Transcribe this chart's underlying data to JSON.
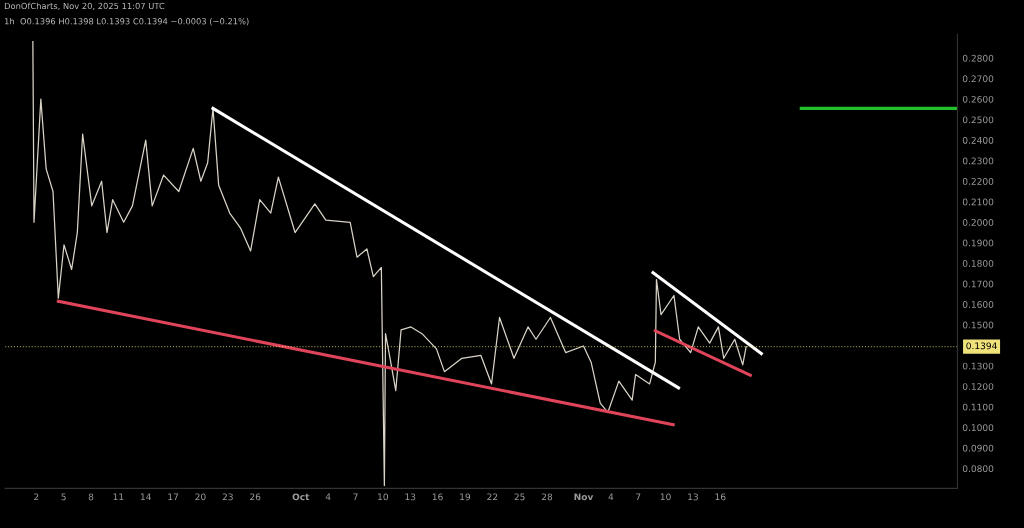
{
  "chart_data": {
    "type": "line",
    "title": "DonOfCharts, Nov 20, 2025 11:07 UTC",
    "subtitle": "1h  O0.1396 H0.1398 L0.1393 C0.1394 −0.0003 (−0.21%)",
    "series": [
      {
        "color": "#d9d3c7",
        "x": [
          "2025-09-01T15:00",
          "2025-09-01T18:00",
          "2025-09-02T12:00",
          "2025-09-03T02:00",
          "2025-09-03T20:00",
          "2025-09-04T10:00",
          "2025-09-05T01:00",
          "2025-09-05T21:00",
          "2025-09-06T12:00",
          "2025-09-07T02:00",
          "2025-09-08T02:00",
          "2025-09-09T04:00",
          "2025-09-09T18:00",
          "2025-09-10T09:00",
          "2025-09-11T14:00",
          "2025-09-12T13:00",
          "2025-09-14T00:00",
          "2025-09-14T17:00",
          "2025-09-15T23:00",
          "2025-09-17T15:00",
          "2025-09-19T05:00",
          "2025-09-20T01:00",
          "2025-09-20T19:00",
          "2025-09-21T09:00",
          "2025-09-22T00:00",
          "2025-09-23T05:00",
          "2025-09-24T10:00",
          "2025-09-25T12:00",
          "2025-09-26T12:00",
          "2025-09-27T17:00",
          "2025-09-28T13:00",
          "2025-09-30T09:00",
          "2025-10-02T13:00",
          "2025-10-03T18:00",
          "2025-10-06T10:00",
          "2025-10-07T04:00",
          "2025-10-08T06:00",
          "2025-10-08T23:00",
          "2025-10-09T20:00",
          "2025-10-10T04:00",
          "2025-10-10T07:00",
          "2025-10-10T19:00",
          "2025-10-11T10:00",
          "2025-10-12T00:00",
          "2025-10-13T02:00",
          "2025-10-14T07:00",
          "2025-10-15T21:00",
          "2025-10-16T18:00",
          "2025-10-18T16:00",
          "2025-10-20T18:00",
          "2025-10-21T22:00",
          "2025-10-22T19:00",
          "2025-10-24T09:00",
          "2025-10-25T22:00",
          "2025-10-26T19:00",
          "2025-10-28T09:00",
          "2025-10-30T01:00",
          "2025-11-01T00:00",
          "2025-11-01T20:00",
          "2025-11-02T20:00",
          "2025-11-03T16:00",
          "2025-11-04T21:00",
          "2025-11-06T08:00",
          "2025-11-06T17:00",
          "2025-11-08T06:00",
          "2025-11-08T21:00",
          "2025-11-09T00:00",
          "2025-11-09T12:00",
          "2025-11-10T22:00",
          "2025-11-11T13:00",
          "2025-11-12T18:00",
          "2025-11-13T14:00",
          "2025-11-14T20:00",
          "2025-11-15T19:00",
          "2025-11-16T09:00",
          "2025-11-17T14:00",
          "2025-11-18T11:00",
          "2025-11-18T20:00"
        ],
        "values": [
          0.288,
          0.2,
          0.26,
          0.226,
          0.215,
          0.163,
          0.189,
          0.177,
          0.195,
          0.243,
          0.208,
          0.22,
          0.195,
          0.211,
          0.2,
          0.208,
          0.24,
          0.208,
          0.223,
          0.215,
          0.236,
          0.22,
          0.229,
          0.2555,
          0.218,
          0.2045,
          0.197,
          0.186,
          0.211,
          0.2045,
          0.222,
          0.195,
          0.209,
          0.201,
          0.2,
          0.183,
          0.187,
          0.1735,
          0.178,
          0.0717,
          0.1457,
          0.1337,
          0.118,
          0.1476,
          0.149,
          0.1457,
          0.1383,
          0.1272,
          0.1337,
          0.1351,
          0.1212,
          0.1536,
          0.1337,
          0.149,
          0.143,
          0.1536,
          0.1365,
          0.1397,
          0.1318,
          0.1119,
          0.1073,
          0.1226,
          0.1133,
          0.1258,
          0.1212,
          0.1318,
          0.1721,
          0.155,
          0.1643,
          0.143,
          0.1365,
          0.149,
          0.1411,
          0.149,
          0.1337,
          0.143,
          0.1305,
          0.1394
        ]
      },
      {
        "color": "#ffffff",
        "x": [
          "2025-09-21T09:00",
          "2025-11-11T10:00"
        ],
        "values": [
          0.2555,
          0.1193
        ]
      },
      {
        "color": "#ffffff",
        "x": [
          "2025-11-08T15:00",
          "2025-11-20T12:00"
        ],
        "values": [
          0.1754,
          0.136
        ]
      },
      {
        "color": "#e0445a",
        "x": [
          "2025-09-04T10:00",
          "2025-11-10T20:00"
        ],
        "values": [
          0.1615,
          0.1013
        ]
      },
      {
        "color": "#e0445a",
        "x": [
          "2025-11-08T21:00",
          "2025-11-19T07:00"
        ],
        "values": [
          0.1471,
          0.1254
        ]
      },
      {
        "color": "#22c02a",
        "x": [
          "2025-11-24T21:00",
          "2025-12-12T00:00"
        ],
        "values": [
          0.2555,
          0.2555
        ]
      }
    ],
    "ref_lines": [
      {
        "axis": "y",
        "value": 0.1394,
        "label": "0.1394",
        "color": "#f0e27a",
        "line_style": "dotted"
      }
    ],
    "xlim": [
      "2025-08-29T14:00",
      "2025-12-12T00:00"
    ],
    "xticks": [
      {
        "value": "2025-09-02",
        "label": "2"
      },
      {
        "value": "2025-09-05",
        "label": "5"
      },
      {
        "value": "2025-09-08",
        "label": "8"
      },
      {
        "value": "2025-09-11",
        "label": "11"
      },
      {
        "value": "2025-09-14",
        "label": "14"
      },
      {
        "value": "2025-09-17",
        "label": "17"
      },
      {
        "value": "2025-09-20",
        "label": "20"
      },
      {
        "value": "2025-09-23",
        "label": "23"
      },
      {
        "value": "2025-09-26",
        "label": "26"
      },
      {
        "value": "2025-10-01",
        "label": "Oct"
      },
      {
        "value": "2025-10-04",
        "label": "4"
      },
      {
        "value": "2025-10-07",
        "label": "7"
      },
      {
        "value": "2025-10-10",
        "label": "10"
      },
      {
        "value": "2025-10-13",
        "label": "13"
      },
      {
        "value": "2025-10-16",
        "label": "16"
      },
      {
        "value": "2025-10-19",
        "label": "19"
      },
      {
        "value": "2025-10-22",
        "label": "22"
      },
      {
        "value": "2025-10-25",
        "label": "25"
      },
      {
        "value": "2025-10-28",
        "label": "28"
      },
      {
        "value": "2025-11-01",
        "label": "Nov"
      },
      {
        "value": "2025-11-04",
        "label": "4"
      },
      {
        "value": "2025-11-07",
        "label": "7"
      },
      {
        "value": "2025-11-10",
        "label": "10"
      },
      {
        "value": "2025-11-13",
        "label": "13"
      },
      {
        "value": "2025-11-16",
        "label": "16"
      }
    ],
    "ylim": [
      0.0703,
      0.2916
    ],
    "yticks": [
      {
        "value": 0.08,
        "label": "0.0800"
      },
      {
        "value": 0.09,
        "label": "0.0900"
      },
      {
        "value": 0.1,
        "label": "0.1000"
      },
      {
        "value": 0.11,
        "label": "0.1100"
      },
      {
        "value": 0.12,
        "label": "0.1200"
      },
      {
        "value": 0.13,
        "label": "0.1300"
      },
      {
        "value": 0.15,
        "label": "0.1500"
      },
      {
        "value": 0.16,
        "label": "0.1600"
      },
      {
        "value": 0.17,
        "label": "0.1700"
      },
      {
        "value": 0.18,
        "label": "0.1800"
      },
      {
        "value": 0.19,
        "label": "0.1900"
      },
      {
        "value": 0.2,
        "label": "0.2000"
      },
      {
        "value": 0.21,
        "label": "0.2100"
      },
      {
        "value": 0.22,
        "label": "0.2200"
      },
      {
        "value": 0.23,
        "label": "0.2300"
      },
      {
        "value": 0.24,
        "label": "0.2400"
      },
      {
        "value": 0.25,
        "label": "0.2500"
      },
      {
        "value": 0.26,
        "label": "0.2600"
      },
      {
        "value": 0.27,
        "label": "0.2700"
      },
      {
        "value": 0.28,
        "label": "0.2800"
      }
    ],
    "grid": false,
    "legend": false,
    "marker": "none",
    "line_style": "solid"
  }
}
